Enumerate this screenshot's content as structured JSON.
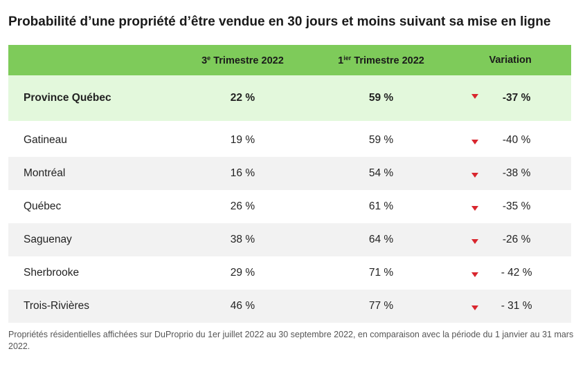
{
  "title": "Probabilité d’une propriété d’être vendue en 30 jours et moins suivant sa mise en ligne",
  "chart_data": {
    "type": "table",
    "columns": [
      {
        "key": "region",
        "label": ""
      },
      {
        "key": "q3_2022",
        "prefix": "3",
        "sup": "e",
        "label": " Trimestre 2022"
      },
      {
        "key": "q1_2022",
        "prefix": "1",
        "sup": "ier",
        "label": " Trimestre 2022"
      },
      {
        "key": "variation",
        "label": "Variation"
      }
    ],
    "highlight_row": {
      "region": "Province Québec",
      "q3_2022": "22 %",
      "q1_2022": "59 %",
      "variation": "-37 %"
    },
    "rows": [
      {
        "region": "Gatineau",
        "q3_2022": "19 %",
        "q1_2022": "59 %",
        "variation": "-40 %"
      },
      {
        "region": "Montréal",
        "q3_2022": "16 %",
        "q1_2022": "54 %",
        "variation": "-38 %"
      },
      {
        "region": "Québec",
        "q3_2022": "26 %",
        "q1_2022": "61 %",
        "variation": "-35 %"
      },
      {
        "region": "Saguenay",
        "q3_2022": "38 %",
        "q1_2022": "64 %",
        "variation": "-26 %"
      },
      {
        "region": "Sherbrooke",
        "q3_2022": "29 %",
        "q1_2022": "71 %",
        "variation": "- 42 %"
      },
      {
        "region": "Trois-Rivières",
        "q3_2022": "46 %",
        "q1_2022": "77 %",
        "variation": "- 31 %"
      }
    ],
    "colors": {
      "header": "#7ecb5a",
      "highlight": "#e3f8dc",
      "alt_row": "#f2f2f2",
      "down_arrow": "#d9262e"
    }
  },
  "footnote": "Propriétés résidentielles affichées sur DuProprio du 1er juillet 2022 au 30 septembre 2022, en comparaison avec la période du 1 janvier au 31 mars 2022."
}
